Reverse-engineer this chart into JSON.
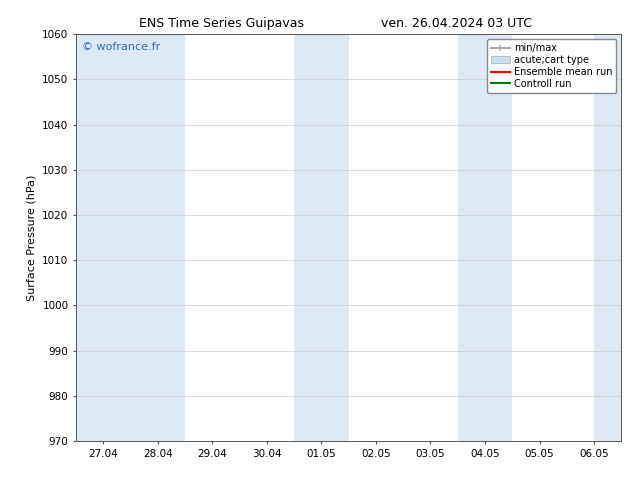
{
  "title_left": "ENS Time Series Guipavas",
  "title_right": "ven. 26.04.2024 03 UTC",
  "ylabel": "Surface Pressure (hPa)",
  "ylim": [
    970,
    1060
  ],
  "yticks": [
    970,
    980,
    990,
    1000,
    1010,
    1020,
    1030,
    1040,
    1050,
    1060
  ],
  "x_labels": [
    "27.04",
    "28.04",
    "29.04",
    "30.04",
    "01.05",
    "02.05",
    "03.05",
    "04.05",
    "05.05",
    "06.05"
  ],
  "x_positions": [
    0,
    1,
    2,
    3,
    4,
    5,
    6,
    7,
    8,
    9
  ],
  "xlim": [
    -0.5,
    9.5
  ],
  "background_color": "#ffffff",
  "plot_bg_color": "#ffffff",
  "shaded_bands": [
    {
      "x_start": -0.5,
      "x_end": 1.5,
      "color": "#ddeaf6"
    },
    {
      "x_start": 3.5,
      "x_end": 4.5,
      "color": "#ddeaf6"
    },
    {
      "x_start": 6.5,
      "x_end": 7.5,
      "color": "#ddeaf6"
    },
    {
      "x_start": 9.0,
      "x_end": 9.5,
      "color": "#ddeaf6"
    }
  ],
  "watermark_text": "© wofrance.fr",
  "watermark_color": "#3366cc",
  "legend_items": [
    {
      "label": "min/max",
      "color": "#aaaaaa",
      "lw": 1.5,
      "type": "line_with_caps"
    },
    {
      "label": "acute;cart type",
      "color": "#c8dff0",
      "lw": 8,
      "type": "band"
    },
    {
      "label": "Ensemble mean run",
      "color": "#ff0000",
      "lw": 1.5,
      "type": "line"
    },
    {
      "label": "Controll run",
      "color": "#008000",
      "lw": 1.5,
      "type": "line"
    }
  ],
  "title_fontsize": 9,
  "label_fontsize": 8,
  "tick_fontsize": 7.5,
  "legend_fontsize": 7,
  "watermark_fontsize": 8
}
